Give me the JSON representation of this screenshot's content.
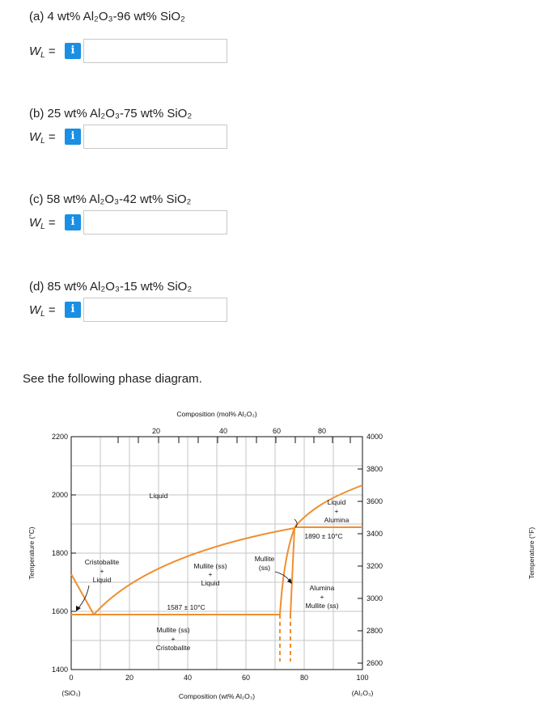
{
  "questions": [
    {
      "label": "(a) 4 wt% Al₂O₃-96 wt% SiO₂",
      "value": ""
    },
    {
      "label": "(b) 25 wt% Al₂O₃-75 wt% SiO₂",
      "value": ""
    },
    {
      "label": "(c) 58 wt% Al₂O₃-42 wt% SiO₂",
      "value": ""
    },
    {
      "label": "(d) 85 wt% Al₂O₃-15 wt% SiO₂",
      "value": ""
    }
  ],
  "wl_symbol": "W",
  "wl_sub": "L",
  "wl_equals": "=",
  "info_glyph": "i",
  "info_icon": "info-icon",
  "see_text": "See the following phase diagram.",
  "diagram": {
    "top_axis_title": "Composition (mol% Al₂O₃)",
    "bottom_axis_title": "Composition (wt% Al₂O₃)",
    "left_axis_title": "Temperature (°C)",
    "right_axis_title": "Temperature (°F)",
    "left_ticks": [
      "2200",
      "2000",
      "1800",
      "1600",
      "1400"
    ],
    "right_ticks": [
      "4000",
      "3800",
      "3600",
      "3400",
      "3200",
      "3000",
      "2800",
      "2600"
    ],
    "bottom_ticks": [
      "0",
      "20",
      "40",
      "60",
      "80",
      "100"
    ],
    "top_ticks": [
      "20",
      "40",
      "60",
      "80"
    ],
    "bottom_left_end": "(SiO₂)",
    "bottom_right_end": "(Al₂O₃)",
    "labels": {
      "liquid": "Liquid",
      "cristobalite": "Cristobalite",
      "plus": "+",
      "liquid2": "Liquid",
      "mullite_ss": "Mullite (ss)",
      "mullite_line1": "Mullite",
      "mullite_line2": "(ss)",
      "liquid_alumina_1": "Liquid",
      "liquid_alumina_3": "Alumina",
      "eutectic_low": "1587 ± 10°C",
      "eutectic_high": "1890 ± 10°C",
      "alumina_mullite_1": "Alumina",
      "alumina_mullite_3": "Mullite (ss)",
      "mullite_cristobalite_1": "Mullite (ss)",
      "mullite_cristobalite_3": "Cristobalite"
    },
    "line_color": "#ef8f2f"
  }
}
